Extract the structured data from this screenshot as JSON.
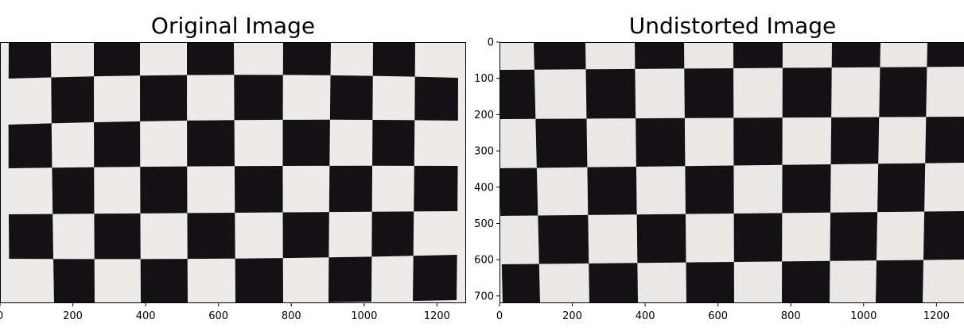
{
  "titles": {
    "left": "Original Image",
    "right": "Undistorted Image"
  },
  "colors": {
    "paper": "#ecebea",
    "paper_right": "#e9e8e7",
    "square": "#131113",
    "border": "#000000"
  },
  "axes": {
    "left": {
      "x_ticks": [
        "0",
        "200",
        "400",
        "600",
        "800",
        "1000",
        "1200"
      ],
      "y_ticks": []
    },
    "right": {
      "x_ticks": [
        "0",
        "200",
        "400",
        "600",
        "800",
        "1000",
        "1200"
      ],
      "y_ticks": [
        "0",
        "100",
        "200",
        "300",
        "400",
        "500",
        "600",
        "700"
      ]
    }
  },
  "image_extent": {
    "width": 1280,
    "height": 720
  }
}
